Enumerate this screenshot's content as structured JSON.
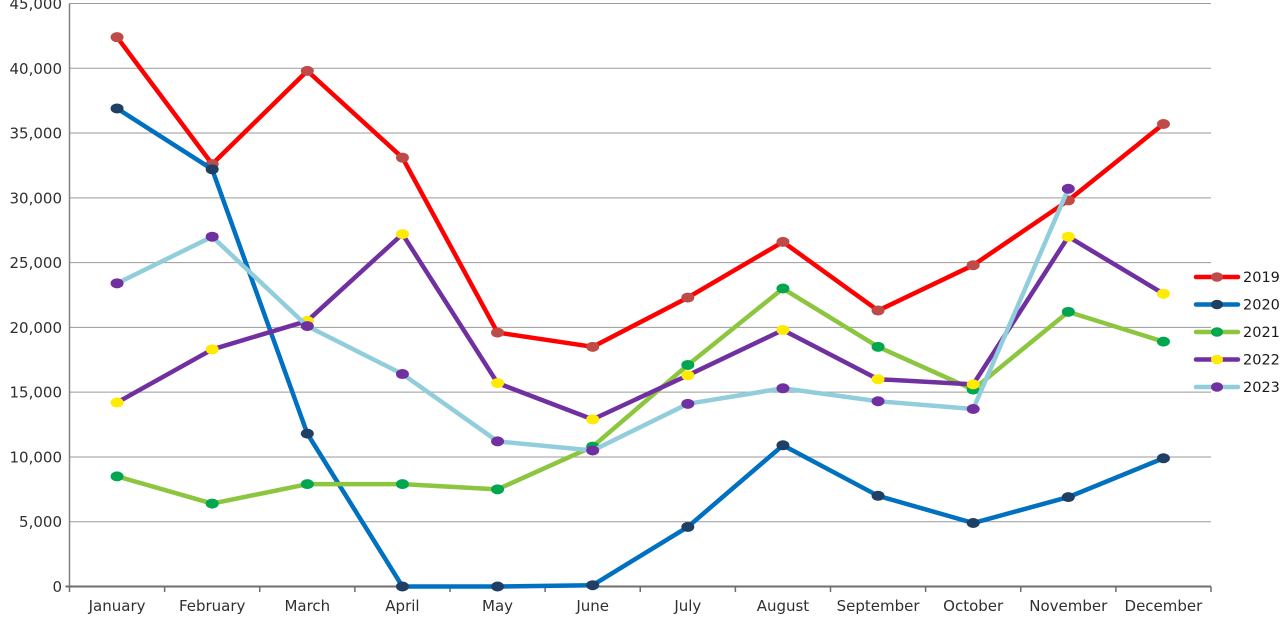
{
  "chart_data": {
    "type": "line",
    "categories": [
      "January",
      "February",
      "March",
      "April",
      "May",
      "June",
      "July",
      "August",
      "September",
      "October",
      "November",
      "December"
    ],
    "y_ticks": [
      "0",
      "5,000",
      "10,000",
      "15,000",
      "20,000",
      "25,000",
      "30,000",
      "35,000",
      "40,000",
      "45,000"
    ],
    "ylim": [
      0,
      45000
    ],
    "y_step": 5000,
    "grid": true,
    "legend_position": "right",
    "legend_entries": [
      "2019",
      "2020",
      "2021",
      "2022",
      "2023"
    ],
    "series": [
      {
        "name": "2019",
        "line_color": "#FF0000",
        "marker_color": "#BE4B48",
        "values": [
          42400,
          32600,
          39800,
          33100,
          19600,
          18500,
          22300,
          26600,
          21300,
          24800,
          29800,
          35700
        ]
      },
      {
        "name": "2020",
        "line_color": "#0070C0",
        "marker_color": "#1F4064",
        "values": [
          36900,
          32200,
          11800,
          0,
          0,
          100,
          4600,
          10900,
          7000,
          4900,
          6900,
          9900
        ]
      },
      {
        "name": "2021",
        "line_color": "#8CC63E",
        "marker_color": "#00A650",
        "values": [
          8500,
          6400,
          7900,
          7900,
          7500,
          10800,
          17100,
          23000,
          18500,
          15200,
          21200,
          18900
        ]
      },
      {
        "name": "2022",
        "line_color": "#7030A0",
        "marker_color": "#FFEB00",
        "values": [
          14200,
          18300,
          20500,
          27200,
          15700,
          12900,
          16300,
          19800,
          16000,
          15600,
          27000,
          22600
        ]
      },
      {
        "name": "2023",
        "line_color": "#92CDDC",
        "marker_color": "#7030A0",
        "values": [
          23400,
          27000,
          20100,
          16400,
          11200,
          10500,
          14100,
          15300,
          14300,
          13700,
          30700,
          null
        ]
      }
    ],
    "axis_color": "#808080",
    "grid_color": "#9A9A9A",
    "label_color": "#303030"
  }
}
